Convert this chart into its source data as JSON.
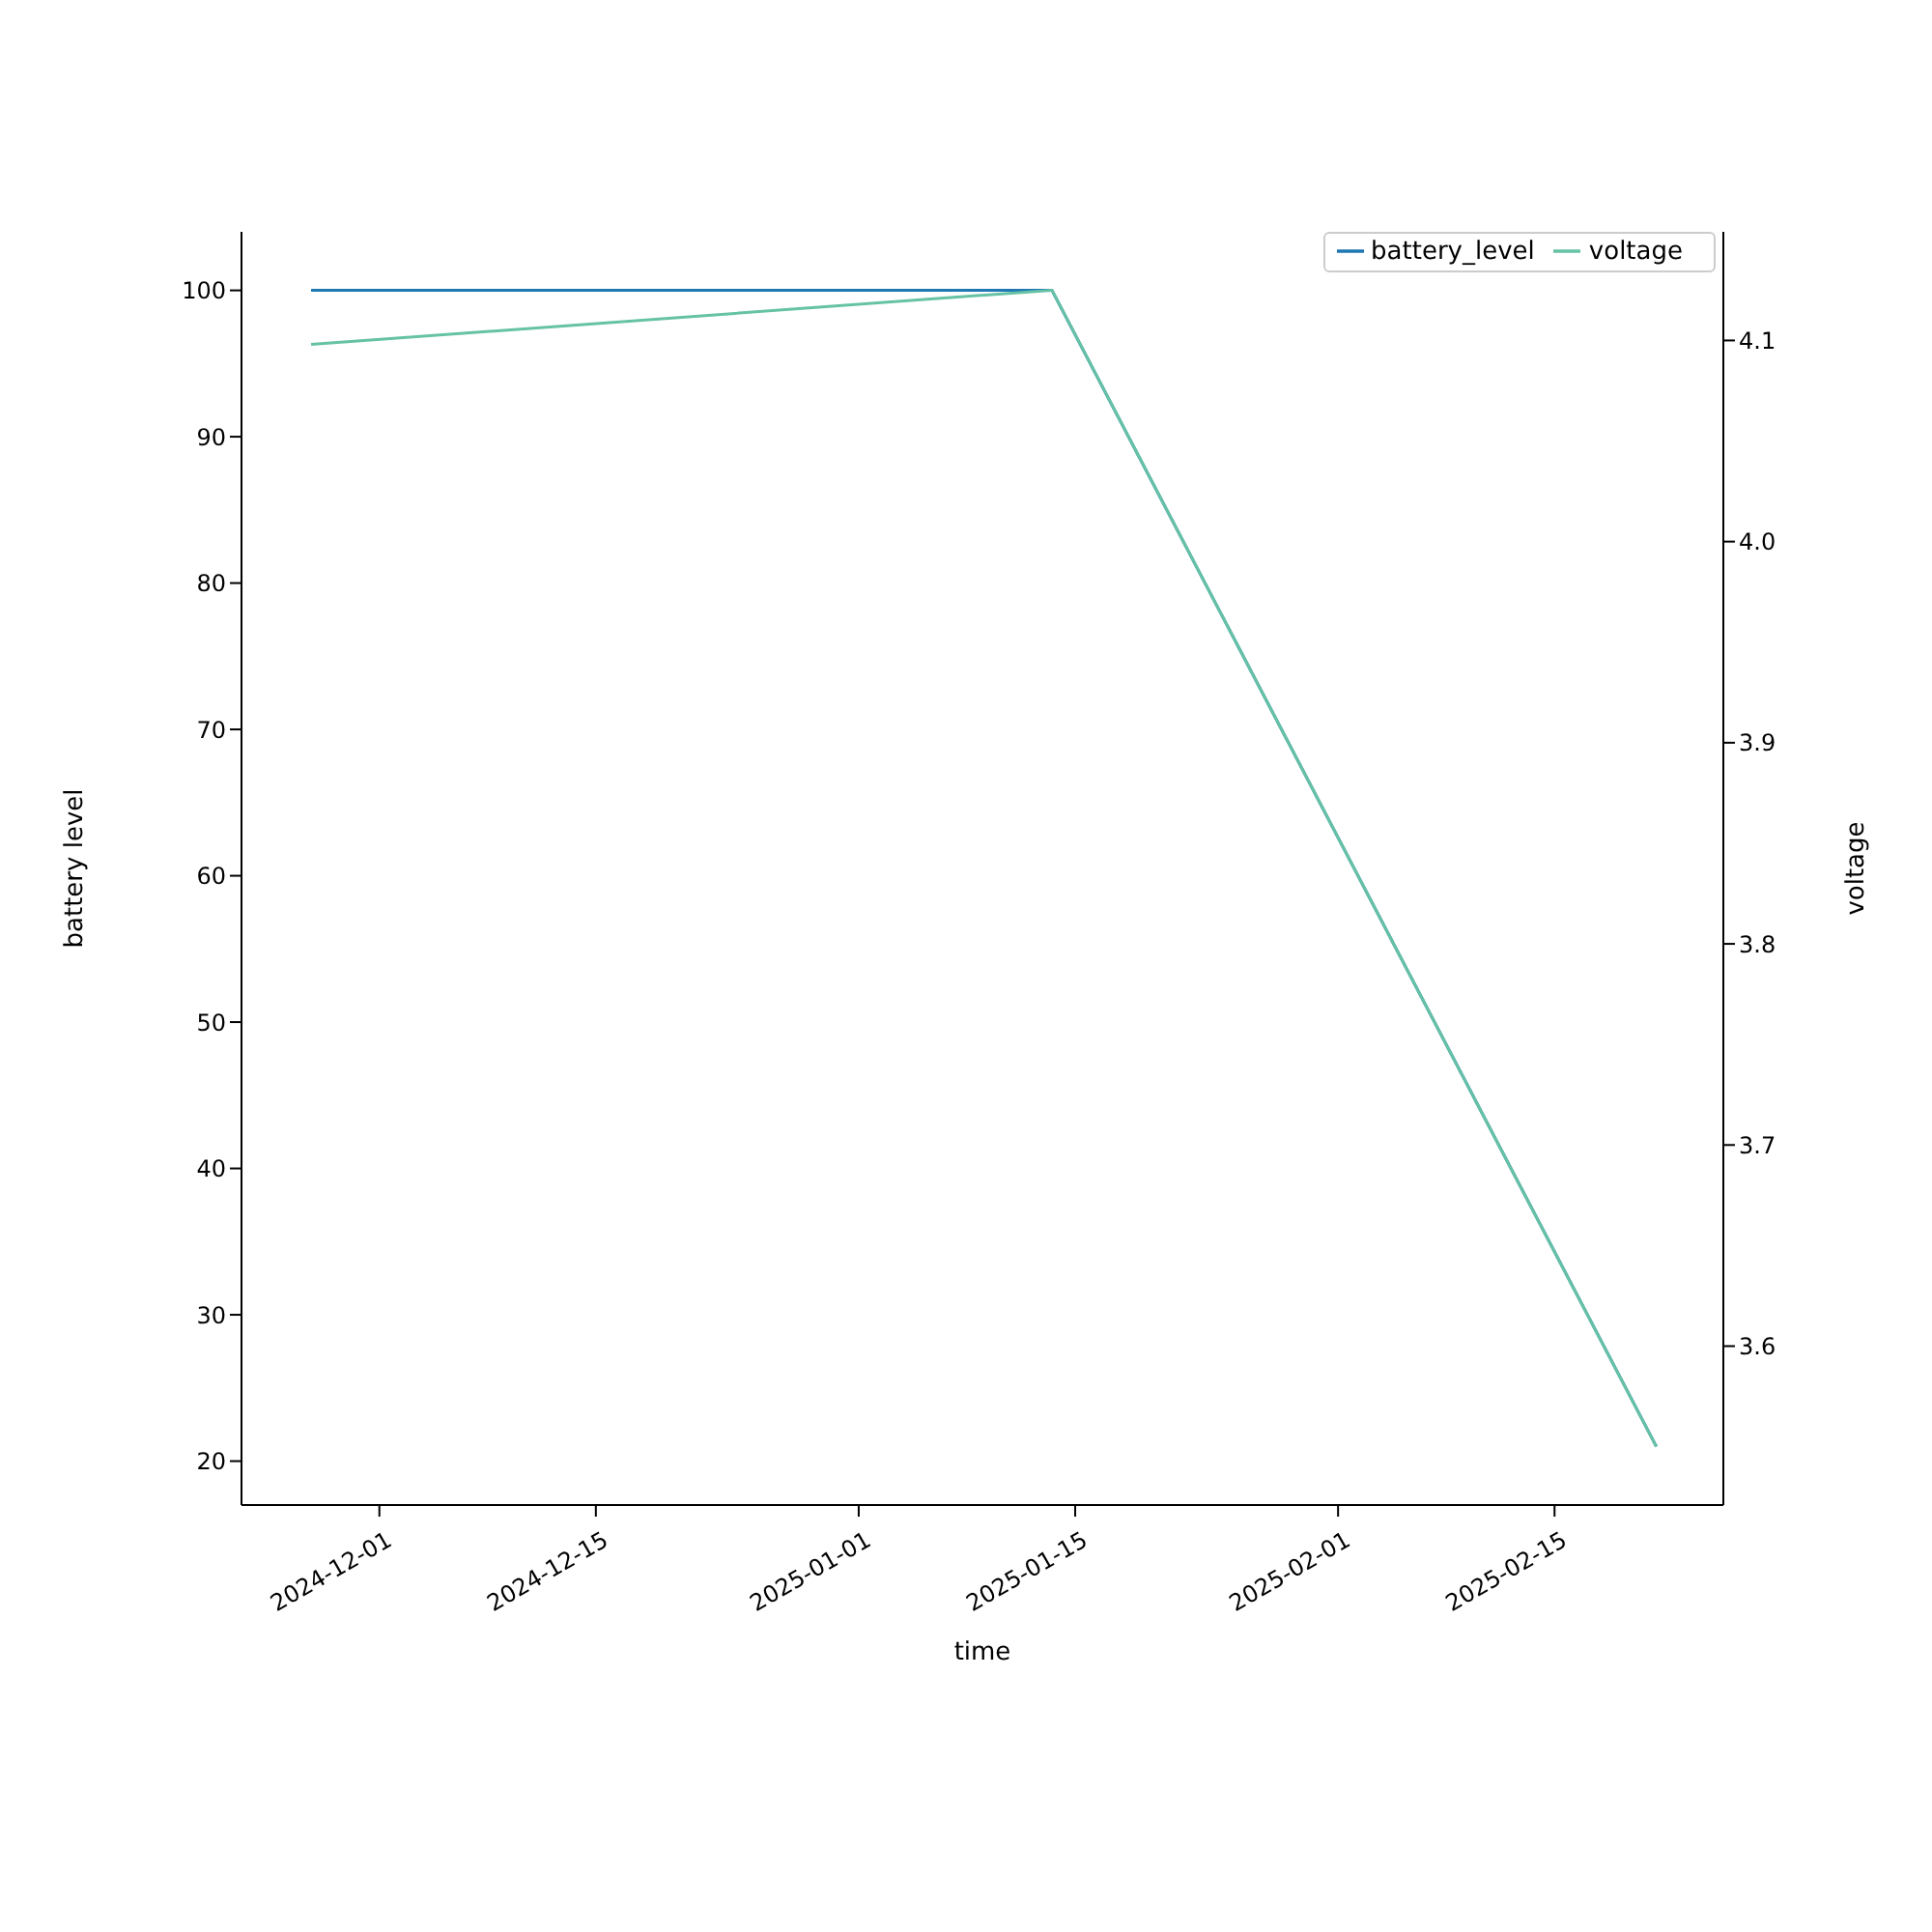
{
  "chart_data": {
    "type": "line",
    "xlabel": "time",
    "ylabel": "battery level",
    "y2label": "voltage",
    "x": [
      "2024-11-26T14:00",
      "2025-01-13T12:00",
      "2025-02-21T14:00"
    ],
    "series": [
      {
        "name": "battery_level",
        "color": "#1f77b4",
        "values": [
          100,
          100,
          21
        ]
      },
      {
        "name": "voltage",
        "color": "#66c2a5",
        "axis": "y2",
        "values": [
          4.098,
          4.125,
          3.55
        ]
      }
    ],
    "xlim": [
      "2024-11-22T02:00",
      "2025-02-25T22:00"
    ],
    "xticks": [
      "2024-12-01",
      "2024-12-15",
      "2025-01-01",
      "2025-01-15",
      "2025-02-01",
      "2025-02-15"
    ],
    "ylim": [
      17,
      104
    ],
    "yticks": [
      20,
      30,
      40,
      50,
      60,
      70,
      80,
      90,
      100
    ],
    "y2lim": [
      3.521,
      4.154
    ],
    "y2ticks": [
      3.6,
      3.7,
      3.8,
      3.9,
      {
        "value": 4.0,
        "label": "4.0"
      },
      4.1
    ],
    "grid": false,
    "legend": "top right"
  }
}
